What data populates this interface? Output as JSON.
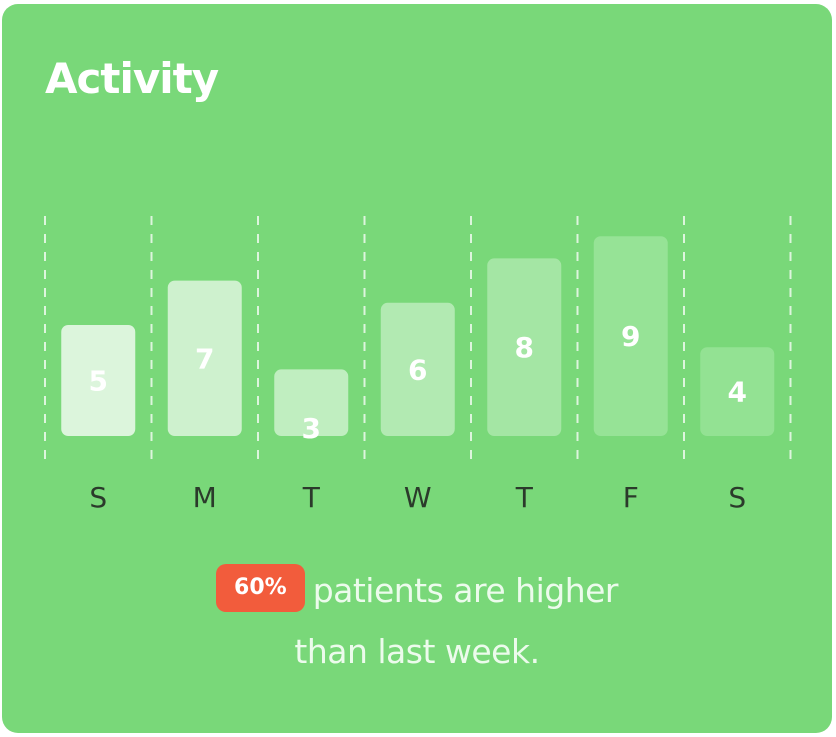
{
  "card": {
    "title": "Activity",
    "colors": {
      "background": "#79d879",
      "badge": "#f25c3c",
      "bar_light": "#dcf5dc",
      "bar_dark": "#93e293",
      "day_label": "#2b3a2b"
    }
  },
  "chart_data": {
    "type": "bar",
    "categories": [
      "S",
      "M",
      "T",
      "W",
      "T",
      "F",
      "S"
    ],
    "values": [
      5,
      7,
      3,
      6,
      8,
      9,
      4
    ],
    "title": "",
    "xlabel": "",
    "ylabel": "",
    "ylim": [
      0,
      10
    ],
    "grid": "vertical-dashed",
    "legend": "none",
    "data_labels": true
  },
  "summary": {
    "badge": "60%",
    "line1": "patients are higher",
    "line2": "than last week."
  }
}
